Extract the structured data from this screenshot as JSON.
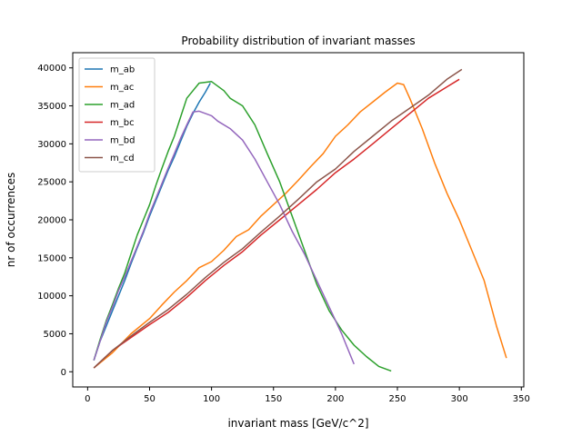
{
  "chart_data": {
    "type": "line",
    "title": "Probability distribution of invariant masses",
    "xlabel": "invariant mass [GeV/c^2]",
    "ylabel": "nr of occurrences",
    "xlim": [
      -12,
      352
    ],
    "ylim": [
      -2000,
      42000
    ],
    "xticks": [
      0,
      50,
      100,
      150,
      200,
      250,
      300,
      350
    ],
    "yticks": [
      0,
      5000,
      10000,
      15000,
      20000,
      25000,
      30000,
      35000,
      40000
    ],
    "grid": false,
    "legend_position": "top-left",
    "series": [
      {
        "name": "m_ab",
        "color": "#1f77b4",
        "points": [
          [
            5,
            1500
          ],
          [
            10,
            4000
          ],
          [
            15,
            6000
          ],
          [
            20,
            8000
          ],
          [
            25,
            10000
          ],
          [
            30,
            12000
          ],
          [
            35,
            14200
          ],
          [
            40,
            16300
          ],
          [
            45,
            18300
          ],
          [
            50,
            20500
          ],
          [
            55,
            22500
          ],
          [
            60,
            24500
          ],
          [
            65,
            26500
          ],
          [
            70,
            28300
          ],
          [
            75,
            30300
          ],
          [
            80,
            32300
          ],
          [
            85,
            34000
          ],
          [
            90,
            35500
          ],
          [
            95,
            36800
          ],
          [
            99,
            38000
          ]
        ]
      },
      {
        "name": "m_ac",
        "color": "#ff7f0e",
        "points": [
          [
            5,
            500
          ],
          [
            20,
            2500
          ],
          [
            35,
            5000
          ],
          [
            50,
            7000
          ],
          [
            60,
            8800
          ],
          [
            70,
            10500
          ],
          [
            80,
            12000
          ],
          [
            90,
            13700
          ],
          [
            100,
            14500
          ],
          [
            110,
            16000
          ],
          [
            120,
            17800
          ],
          [
            130,
            18700
          ],
          [
            140,
            20500
          ],
          [
            150,
            22000
          ],
          [
            160,
            23500
          ],
          [
            170,
            25200
          ],
          [
            180,
            27000
          ],
          [
            190,
            28700
          ],
          [
            200,
            31000
          ],
          [
            210,
            32500
          ],
          [
            220,
            34200
          ],
          [
            230,
            35500
          ],
          [
            240,
            36800
          ],
          [
            250,
            38000
          ],
          [
            255,
            37800
          ],
          [
            260,
            36000
          ],
          [
            270,
            32000
          ],
          [
            280,
            27500
          ],
          [
            290,
            23500
          ],
          [
            300,
            20000
          ],
          [
            310,
            16000
          ],
          [
            320,
            12000
          ],
          [
            330,
            6000
          ],
          [
            338,
            1800
          ]
        ]
      },
      {
        "name": "m_ad",
        "color": "#2ca02c",
        "points": [
          [
            5,
            1500
          ],
          [
            10,
            4200
          ],
          [
            15,
            6700
          ],
          [
            20,
            8800
          ],
          [
            25,
            11000
          ],
          [
            30,
            13000
          ],
          [
            35,
            15500
          ],
          [
            40,
            18000
          ],
          [
            45,
            20000
          ],
          [
            50,
            22000
          ],
          [
            55,
            24500
          ],
          [
            60,
            26800
          ],
          [
            65,
            29000
          ],
          [
            70,
            31000
          ],
          [
            75,
            33500
          ],
          [
            80,
            36000
          ],
          [
            85,
            37000
          ],
          [
            90,
            38000
          ],
          [
            100,
            38200
          ],
          [
            110,
            37000
          ],
          [
            115,
            36000
          ],
          [
            125,
            35000
          ],
          [
            135,
            32500
          ],
          [
            145,
            28700
          ],
          [
            155,
            25000
          ],
          [
            165,
            20500
          ],
          [
            175,
            16000
          ],
          [
            185,
            11500
          ],
          [
            195,
            8000
          ],
          [
            205,
            5500
          ],
          [
            215,
            3500
          ],
          [
            225,
            2000
          ],
          [
            235,
            700
          ],
          [
            245,
            100
          ]
        ]
      },
      {
        "name": "m_bc",
        "color": "#d62728",
        "points": [
          [
            5,
            500
          ],
          [
            20,
            2800
          ],
          [
            35,
            4500
          ],
          [
            50,
            6200
          ],
          [
            65,
            7800
          ],
          [
            80,
            9800
          ],
          [
            95,
            12000
          ],
          [
            110,
            14000
          ],
          [
            125,
            15800
          ],
          [
            140,
            18000
          ],
          [
            155,
            20000
          ],
          [
            170,
            22000
          ],
          [
            185,
            24000
          ],
          [
            200,
            26200
          ],
          [
            215,
            28000
          ],
          [
            230,
            30000
          ],
          [
            245,
            32000
          ],
          [
            260,
            34000
          ],
          [
            275,
            36000
          ],
          [
            290,
            37500
          ],
          [
            300,
            38500
          ]
        ]
      },
      {
        "name": "m_bd",
        "color": "#9467bd",
        "points": [
          [
            5,
            1500
          ],
          [
            10,
            4000
          ],
          [
            15,
            6500
          ],
          [
            20,
            8500
          ],
          [
            25,
            10700
          ],
          [
            30,
            12500
          ],
          [
            35,
            14500
          ],
          [
            40,
            16500
          ],
          [
            45,
            18500
          ],
          [
            50,
            20800
          ],
          [
            55,
            22800
          ],
          [
            60,
            24800
          ],
          [
            65,
            26800
          ],
          [
            70,
            28700
          ],
          [
            75,
            30700
          ],
          [
            80,
            32500
          ],
          [
            85,
            34200
          ],
          [
            90,
            34300
          ],
          [
            100,
            33700
          ],
          [
            105,
            33000
          ],
          [
            115,
            32000
          ],
          [
            125,
            30500
          ],
          [
            135,
            28000
          ],
          [
            145,
            25000
          ],
          [
            155,
            22000
          ],
          [
            165,
            18500
          ],
          [
            175,
            15500
          ],
          [
            185,
            12000
          ],
          [
            195,
            8500
          ],
          [
            205,
            5000
          ],
          [
            215,
            1000
          ]
        ]
      },
      {
        "name": "m_cd",
        "color": "#8c564b",
        "points": [
          [
            5,
            500
          ],
          [
            20,
            2800
          ],
          [
            35,
            4700
          ],
          [
            50,
            6500
          ],
          [
            65,
            8200
          ],
          [
            80,
            10200
          ],
          [
            95,
            12400
          ],
          [
            110,
            14400
          ],
          [
            125,
            16200
          ],
          [
            140,
            18400
          ],
          [
            155,
            20500
          ],
          [
            170,
            22700
          ],
          [
            185,
            25000
          ],
          [
            200,
            26700
          ],
          [
            215,
            29000
          ],
          [
            230,
            31000
          ],
          [
            245,
            33000
          ],
          [
            260,
            34700
          ],
          [
            275,
            36400
          ],
          [
            290,
            38500
          ],
          [
            302,
            39800
          ]
        ]
      }
    ]
  }
}
